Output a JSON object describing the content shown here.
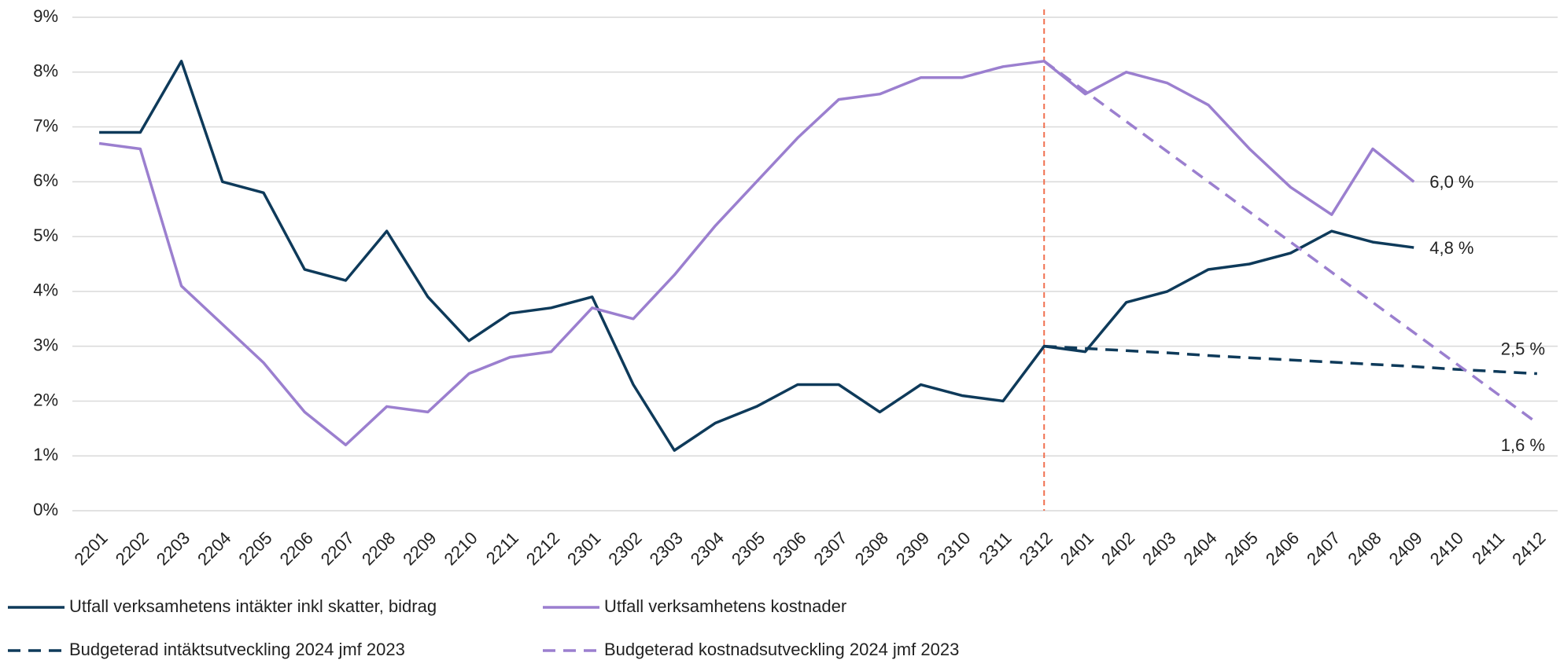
{
  "chart_data": {
    "type": "line",
    "categories": [
      "2201",
      "2202",
      "2203",
      "2204",
      "2205",
      "2206",
      "2207",
      "2208",
      "2209",
      "2210",
      "2211",
      "2212",
      "2301",
      "2302",
      "2303",
      "2304",
      "2305",
      "2306",
      "2307",
      "2308",
      "2309",
      "2310",
      "2311",
      "2312",
      "2401",
      "2402",
      "2403",
      "2404",
      "2405",
      "2406",
      "2407",
      "2408",
      "2409",
      "2410",
      "2411",
      "2412"
    ],
    "series": [
      {
        "name": "Utfall verksamhetens intäkter inkl skatter, bidrag",
        "color": "#0e3a5a",
        "dash": false,
        "end_label": "4,8 %",
        "values": [
          6.9,
          6.9,
          8.2,
          6.0,
          5.8,
          4.4,
          4.2,
          5.1,
          3.9,
          3.1,
          3.6,
          3.7,
          3.9,
          2.3,
          1.1,
          1.6,
          1.9,
          2.3,
          2.3,
          1.8,
          2.3,
          2.1,
          2.0,
          3.0,
          2.9,
          3.8,
          4.0,
          4.4,
          4.5,
          4.7,
          5.1,
          4.9,
          4.8,
          null,
          null,
          null
        ]
      },
      {
        "name": "Utfall verksamhetens kostnader",
        "color": "#9b7fcf",
        "dash": false,
        "end_label": "6,0 %",
        "values": [
          6.7,
          6.6,
          4.1,
          3.4,
          2.7,
          1.8,
          1.2,
          1.9,
          1.8,
          2.5,
          2.8,
          2.9,
          3.7,
          3.5,
          4.3,
          5.2,
          6.0,
          6.8,
          7.5,
          7.6,
          7.9,
          7.9,
          8.1,
          8.2,
          7.6,
          8.0,
          7.8,
          7.4,
          6.6,
          5.9,
          5.4,
          6.6,
          6.0,
          null,
          null,
          null
        ]
      },
      {
        "name": "Budgeterad intäktsutveckling 2024 jmf 2023",
        "color": "#0e3a5a",
        "dash": true,
        "end_label": "2,5 %",
        "values": [
          null,
          null,
          null,
          null,
          null,
          null,
          null,
          null,
          null,
          null,
          null,
          null,
          null,
          null,
          null,
          null,
          null,
          null,
          null,
          null,
          null,
          null,
          null,
          3.0,
          2.96,
          2.92,
          2.88,
          2.83,
          2.79,
          2.75,
          2.71,
          2.67,
          2.63,
          2.58,
          2.54,
          2.5
        ]
      },
      {
        "name": "Budgeterad kostnadsutveckling 2024 jmf 2023",
        "color": "#9b7fcf",
        "dash": true,
        "end_label": "1,6 %",
        "values": [
          null,
          null,
          null,
          null,
          null,
          null,
          null,
          null,
          null,
          null,
          null,
          null,
          null,
          null,
          null,
          null,
          null,
          null,
          null,
          null,
          null,
          null,
          null,
          8.2,
          7.65,
          7.1,
          6.55,
          6.0,
          5.45,
          4.9,
          4.35,
          3.8,
          3.25,
          2.7,
          2.15,
          1.6
        ]
      }
    ],
    "ylim": [
      0,
      9
    ],
    "yticks": [
      {
        "value": 0,
        "label": "0%"
      },
      {
        "value": 1,
        "label": "1%"
      },
      {
        "value": 2,
        "label": "2%"
      },
      {
        "value": 3,
        "label": "3%"
      },
      {
        "value": 4,
        "label": "4%"
      },
      {
        "value": 5,
        "label": "5%"
      },
      {
        "value": 6,
        "label": "6%"
      },
      {
        "value": 7,
        "label": "7%"
      },
      {
        "value": 8,
        "label": "8%"
      },
      {
        "value": 9,
        "label": "9%"
      }
    ],
    "grid": true,
    "marker_line": {
      "category": "2312",
      "color": "#f07050"
    },
    "legend": "bottom"
  }
}
